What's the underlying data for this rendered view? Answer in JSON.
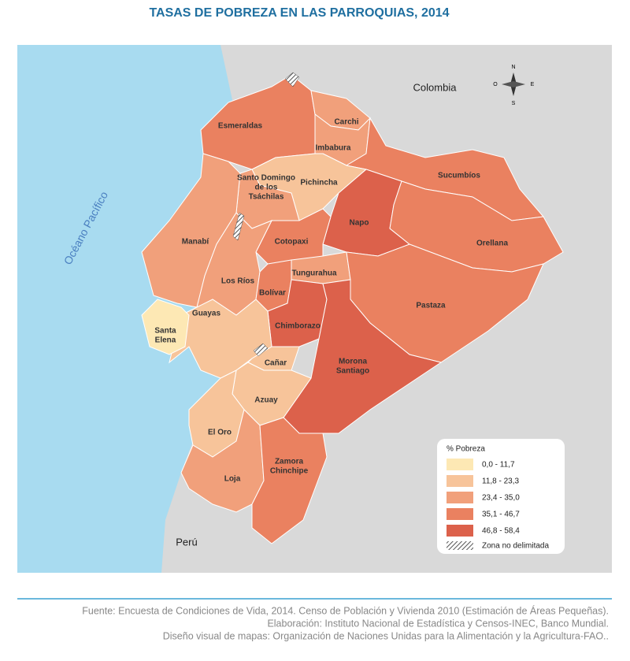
{
  "title": "TASAS DE POBREZA EN LAS PARROQUIAS, 2014",
  "ocean": "Océano Pacífico",
  "countries": [
    "Colombia",
    "Perú"
  ],
  "compass": {
    "north": "N",
    "west": "O",
    "east": "E",
    "south": "S"
  },
  "provinces": [
    {
      "label": [
        "Esmeraldas"
      ],
      "color": "#ea8160"
    },
    {
      "label": [
        "Carchi"
      ],
      "color": "#f1a07b"
    },
    {
      "label": [
        "Imbabura"
      ],
      "color": "#f1a07b"
    },
    {
      "label": [
        "Sucumbíos"
      ],
      "color": "#ea8160"
    },
    {
      "label": [
        "Pichincha"
      ],
      "color": "#f7c49a"
    },
    {
      "label": [
        "Santo Domingo",
        "de los",
        "Tsáchilas"
      ],
      "color": "#f1a07b"
    },
    {
      "label": [
        "Napo"
      ],
      "color": "#dc614b"
    },
    {
      "label": [
        "Orellana"
      ],
      "color": "#ea8160"
    },
    {
      "label": [
        "Manabí"
      ],
      "color": "#f1a07b"
    },
    {
      "label": [
        "Cotopaxi"
      ],
      "color": "#ea8160"
    },
    {
      "label": [
        "Tungurahua"
      ],
      "color": "#f1a07b"
    },
    {
      "label": [
        "Pastaza"
      ],
      "color": "#ea8160"
    },
    {
      "label": [
        "Los Ríos"
      ],
      "color": "#f1a07b"
    },
    {
      "label": [
        "Bolívar"
      ],
      "color": "#ea8160"
    },
    {
      "label": [
        "Chimborazo"
      ],
      "color": "#dc614b"
    },
    {
      "label": [
        "Morona",
        "Santiago"
      ],
      "color": "#dc614b"
    },
    {
      "label": [
        "Guayas"
      ],
      "color": "#f7c49a"
    },
    {
      "label": [
        "Santa",
        "Elena"
      ],
      "color": "#fde8b4"
    },
    {
      "label": [
        "Cañar"
      ],
      "color": "#f7c49a"
    },
    {
      "label": [
        "Azuay"
      ],
      "color": "#f7c49a"
    },
    {
      "label": [
        "El Oro"
      ],
      "color": "#f7c49a"
    },
    {
      "label": [
        "Loja"
      ],
      "color": "#f1a07b"
    },
    {
      "label": [
        "Zamora",
        "Chinchipe"
      ],
      "color": "#ea8160"
    }
  ],
  "legend": {
    "title": "% Pobreza",
    "items": [
      {
        "label": "0,0 - 11,7",
        "color": "#fde8b4"
      },
      {
        "label": "11,8 - 23,3",
        "color": "#f7c49a"
      },
      {
        "label": "23,4 - 35,0",
        "color": "#f1a07b"
      },
      {
        "label": "35,1 - 46,7",
        "color": "#ea8160"
      },
      {
        "label": "46,8 - 58,4",
        "color": "#dc614b"
      }
    ],
    "undelimited": "Zona no delimitada"
  },
  "footer": [
    "Fuente: Encuesta de Condiciones de Vida, 2014. Censo de Población y Vivienda 2010 (Estimación de Áreas Pequeñas).",
    "Elaboración: Instituto Nacional de Estadística y Censos-INEC, Banco Mundial.",
    "Diseño visual de mapas: Organización de Naciones Unidas para la Alimentación y la Agricultura-FAO.."
  ]
}
